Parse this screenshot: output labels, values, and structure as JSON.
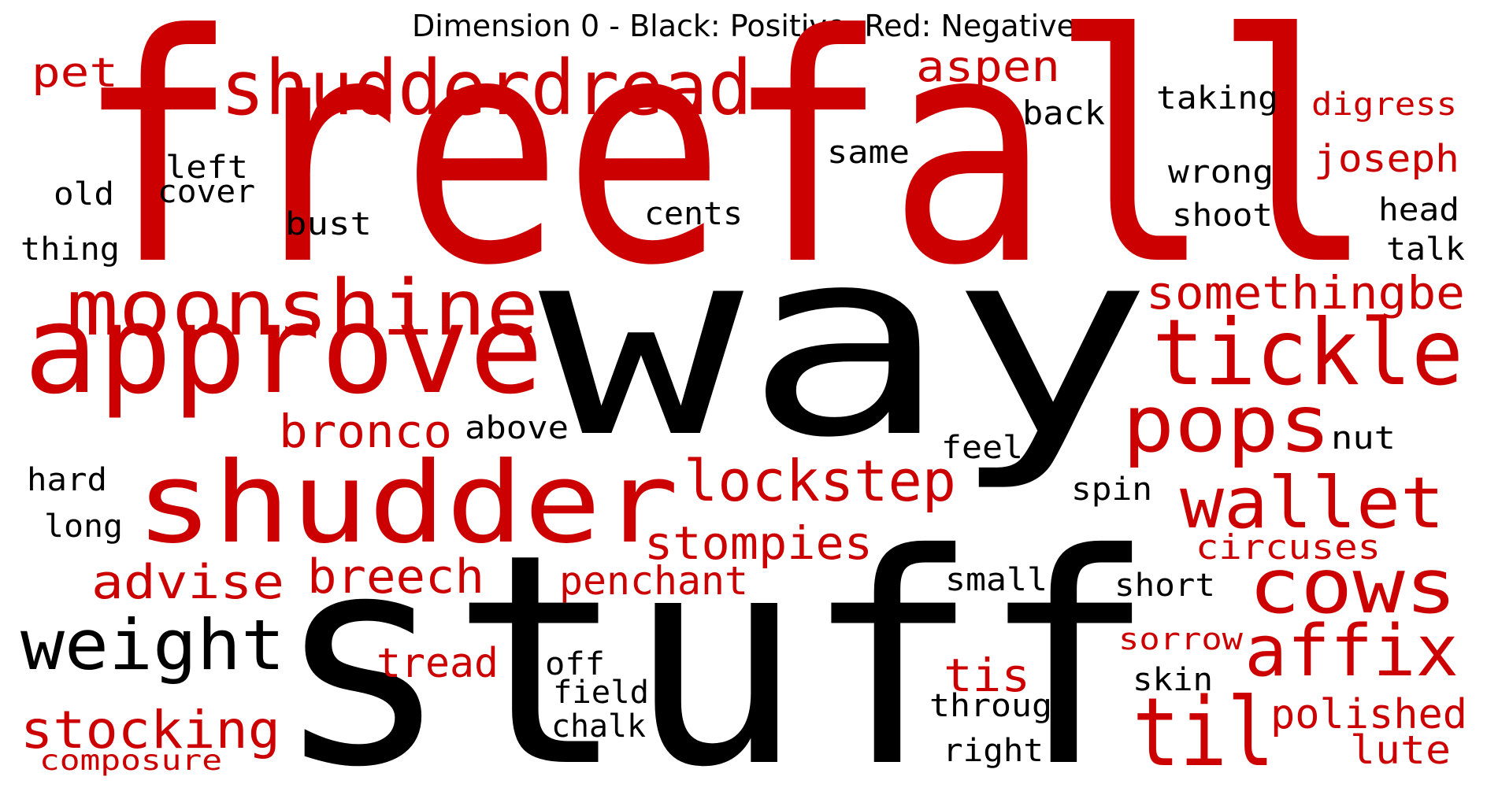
{
  "title": "Dimension 0 - Black: Positive, Red: Negative",
  "colors": {
    "positive": "#000000",
    "negative": "#cc0000"
  },
  "words": [
    {
      "text": "freefall",
      "polarity": "negative"
    },
    {
      "text": "way",
      "polarity": "positive"
    },
    {
      "text": "stuff",
      "polarity": "positive"
    },
    {
      "text": "shudderdread",
      "polarity": "negative"
    },
    {
      "text": "approve",
      "polarity": "negative"
    },
    {
      "text": "shudder",
      "polarity": "negative"
    },
    {
      "text": "moonshine",
      "polarity": "negative"
    },
    {
      "text": "tickle",
      "polarity": "negative"
    },
    {
      "text": "pops",
      "polarity": "negative"
    },
    {
      "text": "cows",
      "polarity": "negative"
    },
    {
      "text": "wallet",
      "polarity": "negative"
    },
    {
      "text": "affix",
      "polarity": "negative"
    },
    {
      "text": "weight",
      "polarity": "positive"
    },
    {
      "text": "lockstep",
      "polarity": "negative"
    },
    {
      "text": "til",
      "polarity": "negative"
    },
    {
      "text": "somethingbe",
      "polarity": "negative"
    },
    {
      "text": "stocking",
      "polarity": "negative"
    },
    {
      "text": "aspen",
      "polarity": "negative"
    },
    {
      "text": "stompies",
      "polarity": "negative"
    },
    {
      "text": "breech",
      "polarity": "negative"
    },
    {
      "text": "advise",
      "polarity": "negative"
    },
    {
      "text": "bronco",
      "polarity": "negative"
    },
    {
      "text": "polished",
      "polarity": "negative"
    },
    {
      "text": "penchant",
      "polarity": "negative"
    },
    {
      "text": "pet",
      "polarity": "negative"
    },
    {
      "text": "tread",
      "polarity": "negative"
    },
    {
      "text": "tis",
      "polarity": "negative"
    },
    {
      "text": "joseph",
      "polarity": "negative"
    },
    {
      "text": "lute",
      "polarity": "negative"
    },
    {
      "text": "circuses",
      "polarity": "negative"
    },
    {
      "text": "digress",
      "polarity": "negative"
    },
    {
      "text": "composure",
      "polarity": "negative"
    },
    {
      "text": "sorrow",
      "polarity": "negative"
    },
    {
      "text": "above",
      "polarity": "positive"
    },
    {
      "text": "back",
      "polarity": "positive"
    },
    {
      "text": "taking",
      "polarity": "positive"
    },
    {
      "text": "wrong",
      "polarity": "positive"
    },
    {
      "text": "shoot",
      "polarity": "positive"
    },
    {
      "text": "cents",
      "polarity": "positive"
    },
    {
      "text": "same",
      "polarity": "positive"
    },
    {
      "text": "left",
      "polarity": "positive"
    },
    {
      "text": "cover",
      "polarity": "positive"
    },
    {
      "text": "old",
      "polarity": "positive"
    },
    {
      "text": "bust",
      "polarity": "positive"
    },
    {
      "text": "thing",
      "polarity": "positive"
    },
    {
      "text": "head",
      "polarity": "positive"
    },
    {
      "text": "talk",
      "polarity": "positive"
    },
    {
      "text": "nut",
      "polarity": "positive"
    },
    {
      "text": "feel",
      "polarity": "positive"
    },
    {
      "text": "spin",
      "polarity": "positive"
    },
    {
      "text": "hard",
      "polarity": "positive"
    },
    {
      "text": "long",
      "polarity": "positive"
    },
    {
      "text": "small",
      "polarity": "positive"
    },
    {
      "text": "short",
      "polarity": "positive"
    },
    {
      "text": "off",
      "polarity": "positive"
    },
    {
      "text": "field",
      "polarity": "positive"
    },
    {
      "text": "chalk",
      "polarity": "positive"
    },
    {
      "text": "skin",
      "polarity": "positive"
    },
    {
      "text": "through",
      "polarity": "positive"
    },
    {
      "text": "right",
      "polarity": "positive"
    }
  ]
}
